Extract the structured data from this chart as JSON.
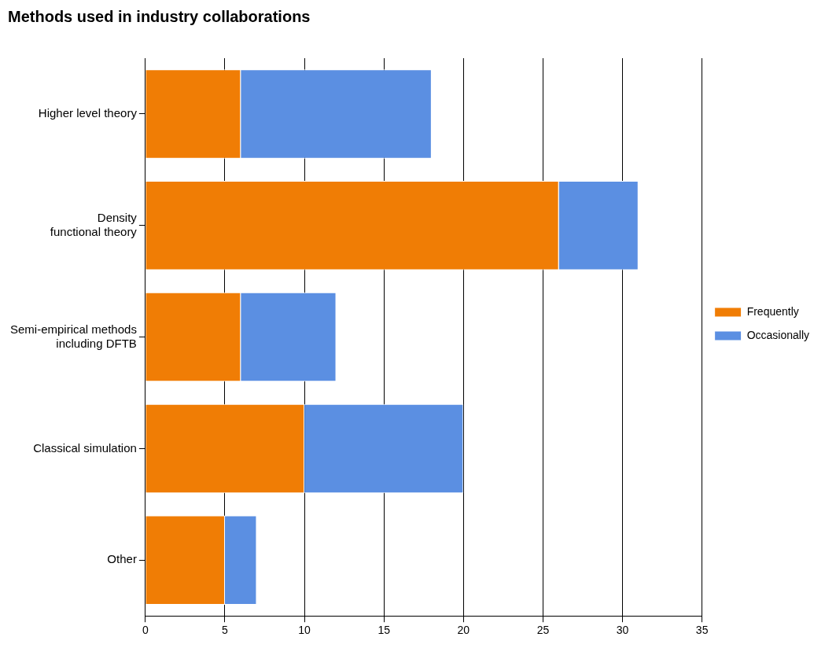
{
  "chart_data": {
    "type": "bar",
    "title": "Methods used in industry collaborations",
    "orientation": "horizontal",
    "stacked": true,
    "categories": [
      "Higher level theory",
      "Density\nfunctional theory",
      "Semi-empirical methods\nincluding DFTB",
      "Classical simulation",
      "Other"
    ],
    "series": [
      {
        "name": "Frequently",
        "color": "#f07d05",
        "values": [
          6,
          26,
          6,
          10,
          5
        ]
      },
      {
        "name": "Occasionally",
        "color": "#5b8fe2",
        "values": [
          12,
          5,
          6,
          10,
          2
        ]
      }
    ],
    "xlim": [
      0,
      35
    ],
    "xticks": [
      0,
      5,
      10,
      15,
      20,
      25,
      30,
      35
    ],
    "grid": "x",
    "legend": "right"
  }
}
